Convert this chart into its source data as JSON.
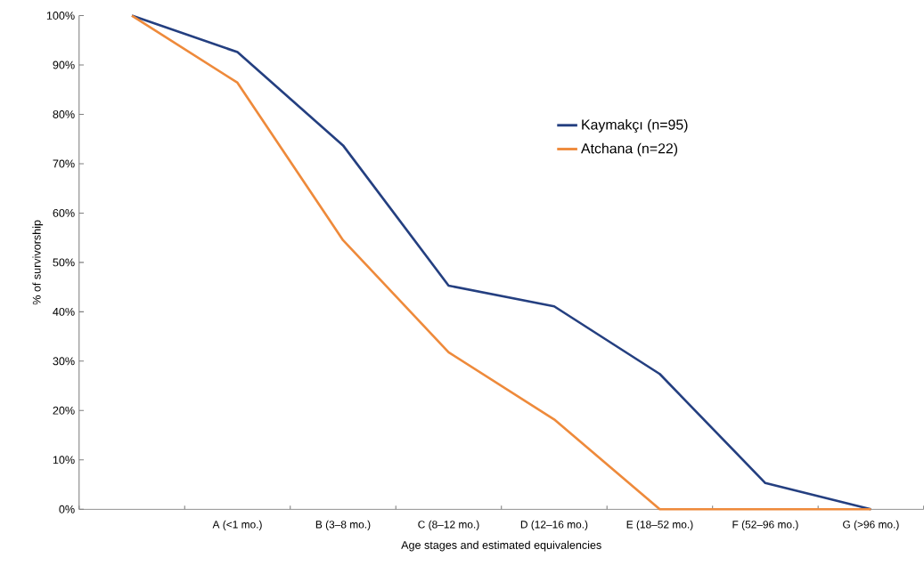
{
  "chart_data": {
    "type": "line",
    "xlabel": "Age stages and estimated equivalencies",
    "ylabel": "% of survivorship",
    "categories": [
      null,
      "A (<1 mo.)",
      "B (3–8 mo.)",
      "C (8–12 mo.)",
      "D (12–16 mo.)",
      "E (18–52 mo.)",
      "F (52–96 mo.)",
      "G (>96 mo.)"
    ],
    "series": [
      {
        "name": "Kaymakçı (n=95)",
        "color": "#243f80",
        "values": [
          100,
          92.6,
          73.7,
          45.3,
          41.1,
          27.4,
          5.3,
          0
        ]
      },
      {
        "name": "Atchana (n=22)",
        "color": "#ee8a3b",
        "values": [
          100,
          86.4,
          54.5,
          31.8,
          18.2,
          0,
          0,
          0
        ]
      }
    ],
    "ylim": [
      0,
      100
    ],
    "yticks": [
      {
        "value": 0,
        "label": "0%"
      },
      {
        "value": 10,
        "label": "10%"
      },
      {
        "value": 20,
        "label": "20%"
      },
      {
        "value": 30,
        "label": "30%"
      },
      {
        "value": 40,
        "label": "40%"
      },
      {
        "value": 50,
        "label": "50%"
      },
      {
        "value": 60,
        "label": "60%"
      },
      {
        "value": 70,
        "label": "70%"
      },
      {
        "value": 80,
        "label": "80%"
      },
      {
        "value": 90,
        "label": "90%"
      },
      {
        "value": 100,
        "label": "100%"
      }
    ],
    "grid": false,
    "legend": "top right",
    "marker": "none",
    "line_style": "solid"
  }
}
